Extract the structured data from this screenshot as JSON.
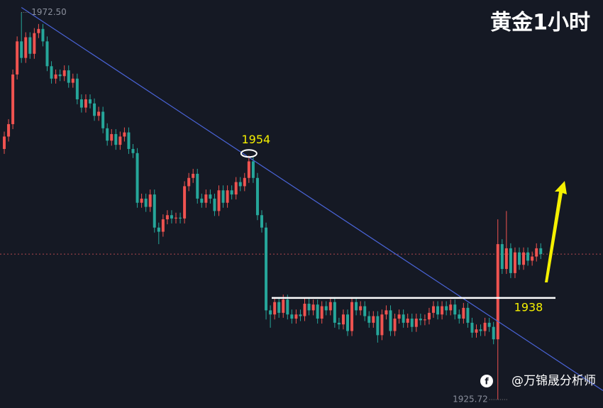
{
  "chart_data": {
    "type": "candlestick",
    "title": "黄金1小时",
    "watermark": "@万锦晟分析师",
    "high_label": "1972.50",
    "low_label": "1925.72",
    "peak_label": "1954",
    "support_label": "1938",
    "support_level": 1938,
    "current_price": 1943.3,
    "up_color": "#ef5350",
    "down_color": "#26a69a",
    "ylim": [
      1924.7,
      1974.0
    ],
    "trendline": {
      "from": [
        4,
        1973.1
      ],
      "to": [
        139.5,
        1926.8
      ]
    },
    "candles": [
      [
        1956,
        1958.1,
        1955.4,
        1957.5
      ],
      [
        1957.5,
        1959.6,
        1956.9,
        1959
      ],
      [
        1959,
        1965.6,
        1958.4,
        1965
      ],
      [
        1965,
        1969.6,
        1964.4,
        1969
      ],
      [
        1969,
        1972.5,
        1966.4,
        1967
      ],
      [
        1967,
        1970.1,
        1966.4,
        1969.5
      ],
      [
        1969.5,
        1970.1,
        1966.9,
        1967.5
      ],
      [
        1967.5,
        1970.6,
        1966.9,
        1970
      ],
      [
        1970,
        1971.1,
        1969.4,
        1970.5
      ],
      [
        1970.5,
        1971.1,
        1968.4,
        1969
      ],
      [
        1969,
        1969.6,
        1965.4,
        1966
      ],
      [
        1966,
        1966.6,
        1963.9,
        1964.5
      ],
      [
        1964.5,
        1965.6,
        1963.9,
        1965
      ],
      [
        1965,
        1965.6,
        1964.2,
        1964.8
      ],
      [
        1964.8,
        1966.1,
        1964.2,
        1965.5
      ],
      [
        1965.5,
        1966.1,
        1963.4,
        1964
      ],
      [
        1964,
        1965.1,
        1963.4,
        1964.5
      ],
      [
        1964.5,
        1965.1,
        1961.4,
        1962
      ],
      [
        1962,
        1962.6,
        1960.4,
        1961
      ],
      [
        1961,
        1962.6,
        1960.4,
        1962
      ],
      [
        1962,
        1962.6,
        1960.9,
        1961.5
      ],
      [
        1961.5,
        1962.1,
        1959.4,
        1960
      ],
      [
        1960,
        1961.1,
        1959.4,
        1960.5
      ],
      [
        1960.5,
        1961.1,
        1957.9,
        1958.5
      ],
      [
        1958.5,
        1959.1,
        1956.4,
        1957
      ],
      [
        1957,
        1958.4,
        1956.4,
        1957.8
      ],
      [
        1957.8,
        1958.4,
        1955.9,
        1956.5
      ],
      [
        1956.5,
        1958.1,
        1955.9,
        1957.5
      ],
      [
        1957.5,
        1958.6,
        1956.9,
        1958
      ],
      [
        1958,
        1958.6,
        1955.4,
        1956
      ],
      [
        1956,
        1956.6,
        1954.9,
        1955.5
      ],
      [
        1955.5,
        1956.1,
        1948.9,
        1949.5
      ],
      [
        1949.5,
        1950.6,
        1948.9,
        1950
      ],
      [
        1950,
        1950.6,
        1948.4,
        1949
      ],
      [
        1949,
        1951.1,
        1948.4,
        1950.5
      ],
      [
        1950.5,
        1951.1,
        1945.9,
        1946.5
      ],
      [
        1946.5,
        1947.1,
        1944.5,
        1946
      ],
      [
        1946,
        1948.1,
        1945.4,
        1947.5
      ],
      [
        1947.5,
        1948.6,
        1946.9,
        1948
      ],
      [
        1948,
        1948.6,
        1947,
        1947.6
      ],
      [
        1947.6,
        1948.3,
        1947,
        1947.7
      ],
      [
        1947.7,
        1948.3,
        1947,
        1947.6
      ],
      [
        1947.6,
        1952.1,
        1947,
        1951.5
      ],
      [
        1951.5,
        1953.1,
        1950.9,
        1952.5
      ],
      [
        1952.5,
        1953.6,
        1951.9,
        1953
      ],
      [
        1953,
        1953.6,
        1949.4,
        1950
      ],
      [
        1950,
        1950.6,
        1948.9,
        1949.5
      ],
      [
        1949.5,
        1951.1,
        1948.9,
        1950.5
      ],
      [
        1950.5,
        1951.1,
        1949.4,
        1950
      ],
      [
        1950,
        1950.6,
        1947.9,
        1948.5
      ],
      [
        1948.5,
        1951.6,
        1947.9,
        1951
      ],
      [
        1951,
        1951.6,
        1948.9,
        1949.5
      ],
      [
        1949.5,
        1951.6,
        1948.9,
        1951
      ],
      [
        1951,
        1951.6,
        1949.9,
        1950.5
      ],
      [
        1950.5,
        1952.6,
        1949.9,
        1952
      ],
      [
        1952,
        1952.6,
        1950.9,
        1951.5
      ],
      [
        1951.5,
        1953.1,
        1950.9,
        1952.5
      ],
      [
        1952.5,
        1955.2,
        1951.9,
        1954.5
      ],
      [
        1954.5,
        1955.1,
        1951.9,
        1952.5
      ],
      [
        1952.5,
        1953.1,
        1947.4,
        1948
      ],
      [
        1948,
        1948.6,
        1945.9,
        1946.5
      ],
      [
        1946.5,
        1947.1,
        1935.4,
        1936.5
      ],
      [
        1936.5,
        1937.1,
        1934.4,
        1936
      ],
      [
        1936,
        1938.1,
        1935.4,
        1937.5
      ],
      [
        1937.5,
        1938.1,
        1935.6,
        1936.2
      ],
      [
        1936.2,
        1938.4,
        1935.6,
        1937.8
      ],
      [
        1937.8,
        1938.4,
        1935.4,
        1936
      ],
      [
        1936,
        1936.6,
        1934.9,
        1935.5
      ],
      [
        1935.5,
        1936.6,
        1934.9,
        1936
      ],
      [
        1936,
        1936.6,
        1935.2,
        1935.8
      ],
      [
        1935.8,
        1937.9,
        1935.2,
        1937.3
      ],
      [
        1937.3,
        1937.9,
        1935.9,
        1936.5
      ],
      [
        1936.5,
        1937.8,
        1935.9,
        1937.2
      ],
      [
        1937.2,
        1937.8,
        1934.9,
        1935.5
      ],
      [
        1935.5,
        1937.6,
        1934.9,
        1937
      ],
      [
        1937,
        1937.6,
        1935.9,
        1936.5
      ],
      [
        1936.5,
        1938.1,
        1935.9,
        1937.5
      ],
      [
        1937.5,
        1938.1,
        1934.4,
        1935
      ],
      [
        1935,
        1935.6,
        1934.2,
        1934.8
      ],
      [
        1934.8,
        1936.6,
        1934.2,
        1936
      ],
      [
        1936,
        1936.6,
        1933.4,
        1934
      ],
      [
        1934,
        1938.1,
        1933.4,
        1937.5
      ],
      [
        1937.5,
        1938.1,
        1935.9,
        1936.5
      ],
      [
        1936.5,
        1937.6,
        1935.9,
        1937
      ],
      [
        1937,
        1937.6,
        1935.2,
        1935.8
      ],
      [
        1935.8,
        1936.4,
        1934.4,
        1935
      ],
      [
        1935,
        1936.4,
        1934.4,
        1935.8
      ],
      [
        1935.8,
        1936.4,
        1932.6,
        1933.5
      ],
      [
        1933.5,
        1936.6,
        1932.9,
        1936
      ],
      [
        1936,
        1937.1,
        1935.4,
        1936.5
      ],
      [
        1936.5,
        1937.1,
        1933.4,
        1934
      ],
      [
        1934,
        1936.1,
        1933.4,
        1935.5
      ],
      [
        1935.5,
        1936.6,
        1934.9,
        1936
      ],
      [
        1936,
        1936.6,
        1934.4,
        1935
      ],
      [
        1935,
        1936.1,
        1934.4,
        1935.5
      ],
      [
        1935.5,
        1936.1,
        1933.9,
        1934.5
      ],
      [
        1934.5,
        1936.1,
        1933.9,
        1935.5
      ],
      [
        1935.5,
        1936.1,
        1934.7,
        1935.3
      ],
      [
        1935.3,
        1936,
        1934.7,
        1935.4
      ],
      [
        1935.4,
        1936.8,
        1934.8,
        1936.2
      ],
      [
        1936.2,
        1937.6,
        1935.6,
        1937
      ],
      [
        1937,
        1937.6,
        1935.4,
        1936
      ],
      [
        1936,
        1937.6,
        1935.4,
        1937
      ],
      [
        1937,
        1937.6,
        1935.9,
        1936.5
      ],
      [
        1936.5,
        1937.8,
        1935.9,
        1937.2
      ],
      [
        1937.2,
        1937.8,
        1935.4,
        1936
      ],
      [
        1936,
        1936.6,
        1934.9,
        1935.5
      ],
      [
        1935.5,
        1937.4,
        1934.9,
        1936.8
      ],
      [
        1936.8,
        1937.4,
        1934.4,
        1935
      ],
      [
        1935,
        1935.6,
        1933.2,
        1933.8
      ],
      [
        1933.8,
        1934.8,
        1933.2,
        1934.2
      ],
      [
        1934.2,
        1934.8,
        1933.4,
        1934
      ],
      [
        1934,
        1935.6,
        1933.4,
        1935
      ],
      [
        1935,
        1935.6,
        1933.9,
        1934.5
      ],
      [
        1934.5,
        1935.1,
        1932.4,
        1933
      ],
      [
        1933,
        1947.5,
        1925.72,
        1944.5
      ],
      [
        1944.5,
        1945.1,
        1940.9,
        1941.5
      ],
      [
        1941.5,
        1948.5,
        1940.9,
        1944
      ],
      [
        1944,
        1944.6,
        1940.4,
        1941
      ],
      [
        1941,
        1944.1,
        1940.4,
        1943.5
      ],
      [
        1943.5,
        1944.1,
        1941.4,
        1942
      ],
      [
        1942,
        1944.1,
        1941.4,
        1943.5
      ],
      [
        1943.5,
        1944.1,
        1941.9,
        1942.5
      ],
      [
        1942.5,
        1943.6,
        1941.9,
        1943
      ],
      [
        1943,
        1944.6,
        1942.4,
        1944
      ],
      [
        1944,
        1944.6,
        1942.7,
        1943.3
      ]
    ]
  }
}
